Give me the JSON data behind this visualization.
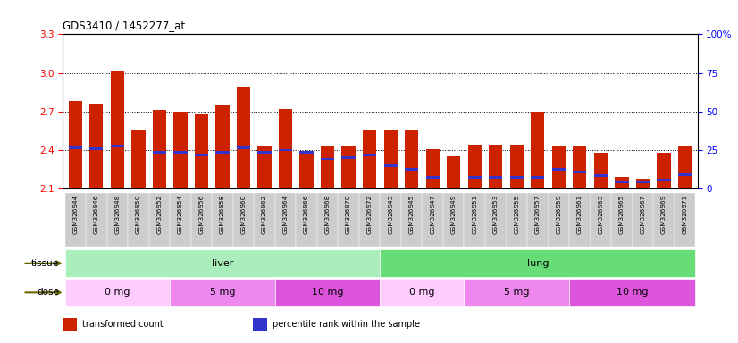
{
  "title": "GDS3410 / 1452277_at",
  "samples": [
    "GSM326944",
    "GSM326946",
    "GSM326948",
    "GSM326950",
    "GSM326952",
    "GSM326954",
    "GSM326956",
    "GSM326958",
    "GSM326960",
    "GSM326962",
    "GSM326964",
    "GSM326966",
    "GSM326968",
    "GSM326970",
    "GSM326972",
    "GSM326943",
    "GSM326945",
    "GSM326947",
    "GSM326949",
    "GSM326951",
    "GSM326953",
    "GSM326955",
    "GSM326957",
    "GSM326959",
    "GSM326961",
    "GSM326963",
    "GSM326965",
    "GSM326967",
    "GSM326969",
    "GSM326971"
  ],
  "bar_top": [
    2.78,
    2.76,
    3.01,
    2.55,
    2.71,
    2.7,
    2.68,
    2.75,
    2.89,
    2.43,
    2.72,
    2.39,
    2.43,
    2.43,
    2.55,
    2.55,
    2.55,
    2.41,
    2.35,
    2.44,
    2.44,
    2.44,
    2.7,
    2.43,
    2.43,
    2.38,
    2.19,
    2.18,
    2.38,
    2.43
  ],
  "bar_bottom": 2.1,
  "blue_marker": [
    2.42,
    2.41,
    2.43,
    2.1,
    2.38,
    2.38,
    2.36,
    2.38,
    2.42,
    2.38,
    2.4,
    2.38,
    2.33,
    2.34,
    2.36,
    2.28,
    2.25,
    2.19,
    2.1,
    2.19,
    2.19,
    2.19,
    2.19,
    2.25,
    2.23,
    2.2,
    2.15,
    2.15,
    2.17,
    2.21
  ],
  "ylim_left": [
    2.1,
    3.3
  ],
  "ylim_right": [
    0,
    100
  ],
  "yticks_left": [
    2.1,
    2.4,
    2.7,
    3.0,
    3.3
  ],
  "yticks_right": [
    0,
    25,
    50,
    75,
    100
  ],
  "ytick_right_labels": [
    "0",
    "25",
    "50",
    "75",
    "100%"
  ],
  "bar_color": "#cc2200",
  "blue_color": "#3333cc",
  "tissue_groups": [
    {
      "label": "liver",
      "start": 0,
      "end": 15,
      "color": "#aaeebb"
    },
    {
      "label": "lung",
      "start": 15,
      "end": 30,
      "color": "#66dd77"
    }
  ],
  "dose_groups": [
    {
      "label": "0 mg",
      "start": 0,
      "end": 5,
      "color": "#ffccff"
    },
    {
      "label": "5 mg",
      "start": 5,
      "end": 10,
      "color": "#ee88ee"
    },
    {
      "label": "10 mg",
      "start": 10,
      "end": 15,
      "color": "#dd55dd"
    },
    {
      "label": "0 mg",
      "start": 15,
      "end": 19,
      "color": "#ffccff"
    },
    {
      "label": "5 mg",
      "start": 19,
      "end": 24,
      "color": "#ee88ee"
    },
    {
      "label": "10 mg",
      "start": 24,
      "end": 30,
      "color": "#dd55dd"
    }
  ],
  "legend_items": [
    {
      "label": "transformed count",
      "color": "#cc2200"
    },
    {
      "label": "percentile rank within the sample",
      "color": "#3333cc"
    }
  ],
  "grid_lines": [
    2.4,
    2.7,
    3.0
  ],
  "xticklabel_bg": "#cccccc"
}
